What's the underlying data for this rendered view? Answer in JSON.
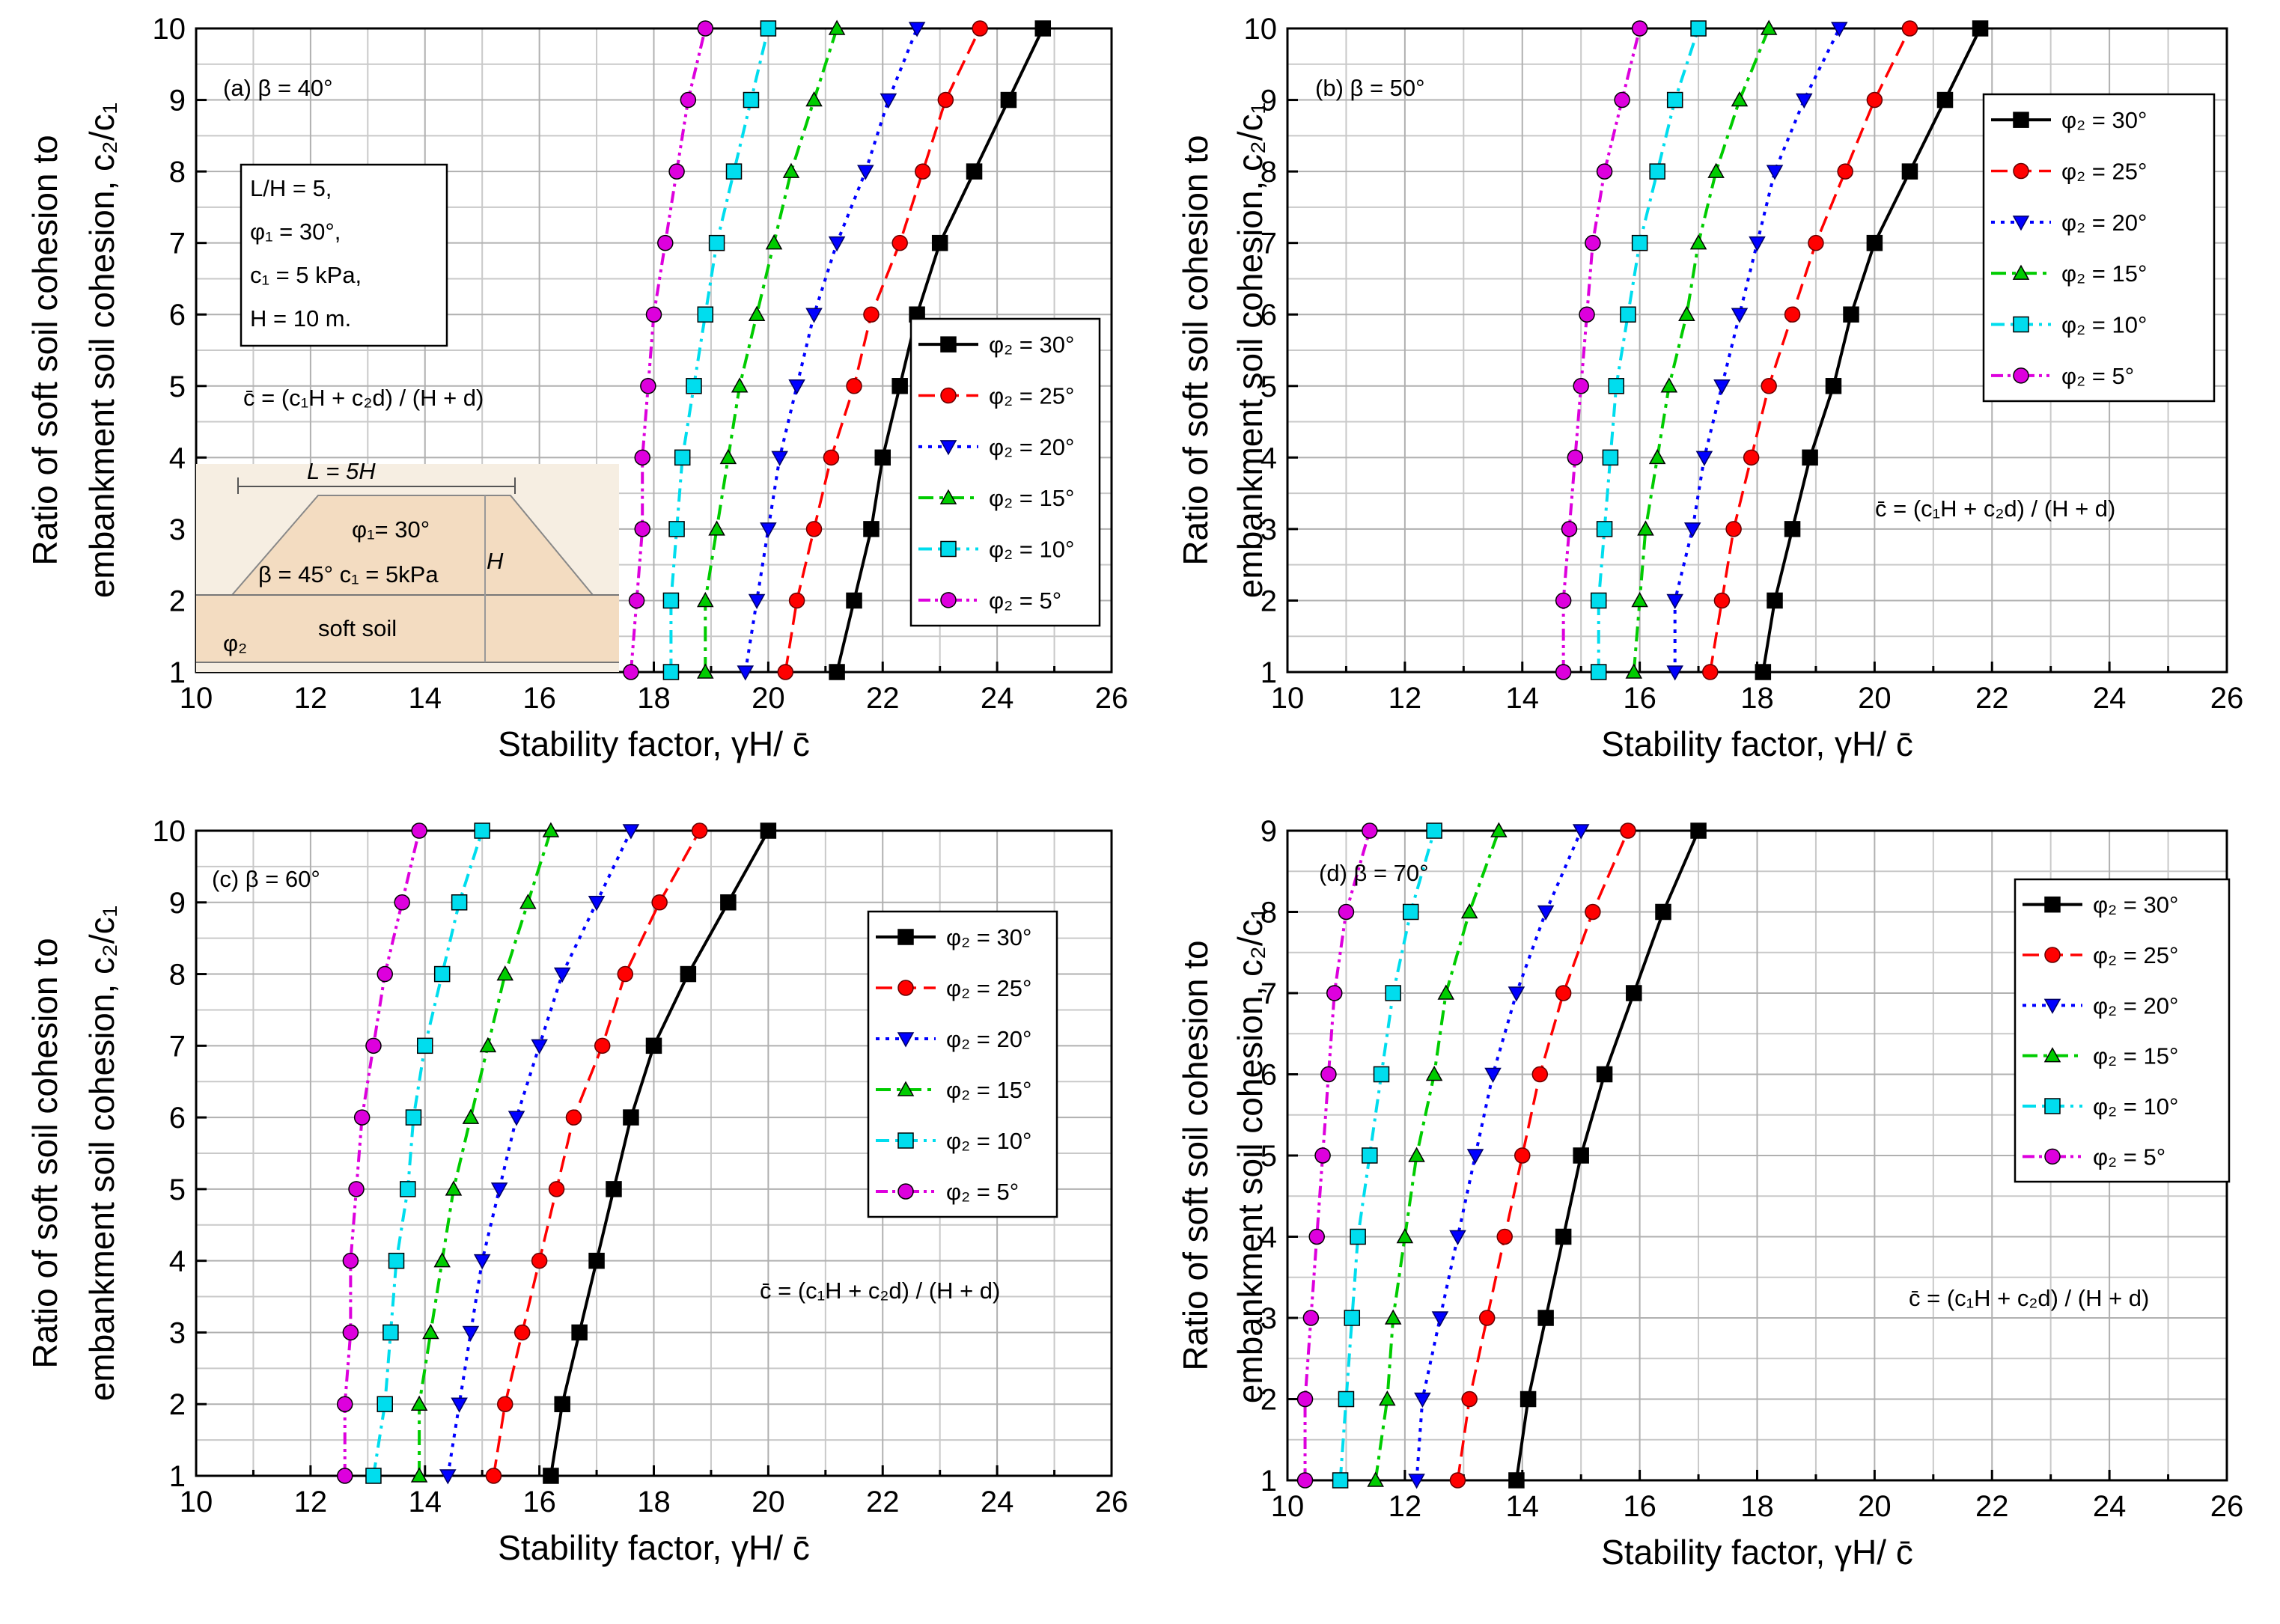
{
  "figure": {
    "xlabel": "Stability factor, γH/ c̄",
    "ylabel_line1": "Ratio of soft soil cohesion to",
    "ylabel_line2": "embankment soil cohesion, c₂/c₁",
    "formula": "c̄ = (c₁H + c₂d) / (H + d)"
  },
  "colors": {
    "p30": "#000000",
    "p25": "#ff0000",
    "p20": "#0000ff",
    "p15": "#00cc00",
    "p10": "#00ddee",
    "p5": "#dd00dd"
  },
  "inset": {
    "params": [
      "L/H = 5,",
      "φ₁ = 30°,",
      "c₁ = 5 kPa,",
      "H = 10 m."
    ],
    "sketch_L": "L = 5H",
    "sketch_phi1": "φ₁= 30°",
    "sketch_beta_c1": "β = 45° c₁ = 5kPa",
    "sketch_H": "H",
    "sketch_soft": "soft soil",
    "sketch_phi2": "φ₂"
  },
  "chart_data": [
    {
      "type": "line",
      "panel": "(a)",
      "title": "(a) β = 40°",
      "xlabel": "Stability factor, γH/ c̄",
      "ylabel": "Ratio of soft soil cohesion to embankment soil cohesion, c₂/c₁",
      "xlim": [
        10,
        26
      ],
      "ylim": [
        1,
        10
      ],
      "xticks": [
        10,
        12,
        14,
        16,
        18,
        20,
        22,
        24,
        26
      ],
      "yticks": [
        1,
        2,
        3,
        4,
        5,
        6,
        7,
        8,
        9,
        10
      ],
      "y": [
        1,
        2,
        3,
        4,
        5,
        6,
        7,
        8,
        9,
        10
      ],
      "legend_position": "center-right",
      "series": [
        {
          "name": "φ₂ = 30°",
          "key": "p30",
          "values": [
            21.2,
            21.5,
            21.8,
            22.0,
            22.3,
            22.6,
            23.0,
            23.6,
            24.2,
            24.8
          ]
        },
        {
          "name": "φ₂ = 25°",
          "key": "p25",
          "values": [
            20.3,
            20.5,
            20.8,
            21.1,
            21.5,
            21.8,
            22.3,
            22.7,
            23.1,
            23.7
          ]
        },
        {
          "name": "φ₂ = 20°",
          "key": "p20",
          "values": [
            19.6,
            19.8,
            20.0,
            20.2,
            20.5,
            20.8,
            21.2,
            21.7,
            22.1,
            22.6
          ]
        },
        {
          "name": "φ₂ = 15°",
          "key": "p15",
          "values": [
            18.9,
            18.9,
            19.1,
            19.3,
            19.5,
            19.8,
            20.1,
            20.4,
            20.8,
            21.2
          ]
        },
        {
          "name": "φ₂ = 10°",
          "key": "p10",
          "values": [
            18.3,
            18.3,
            18.4,
            18.5,
            18.7,
            18.9,
            19.1,
            19.4,
            19.7,
            20.0
          ]
        },
        {
          "name": "φ₂ = 5°",
          "key": "p5",
          "values": [
            17.6,
            17.7,
            17.8,
            17.8,
            17.9,
            18.0,
            18.2,
            18.4,
            18.6,
            18.9
          ]
        }
      ]
    },
    {
      "type": "line",
      "panel": "(b)",
      "title": "(b) β = 50°",
      "xlabel": "Stability factor, γH/ c̄",
      "ylabel": "Ratio of soft soil cohesion to embankment soil cohesion, c₂/c₁",
      "xlim": [
        10,
        26
      ],
      "ylim": [
        1,
        10
      ],
      "xticks": [
        10,
        12,
        14,
        16,
        18,
        20,
        22,
        24,
        26
      ],
      "yticks": [
        1,
        2,
        3,
        4,
        5,
        6,
        7,
        8,
        9,
        10
      ],
      "y": [
        1,
        2,
        3,
        4,
        5,
        6,
        7,
        8,
        9,
        10
      ],
      "legend_position": "top-right",
      "series": [
        {
          "name": "φ₂ = 30°",
          "key": "p30",
          "values": [
            18.1,
            18.3,
            18.6,
            18.9,
            19.3,
            19.6,
            20.0,
            20.6,
            21.2,
            21.8
          ]
        },
        {
          "name": "φ₂ = 25°",
          "key": "p25",
          "values": [
            17.2,
            17.4,
            17.6,
            17.9,
            18.2,
            18.6,
            19.0,
            19.5,
            20.0,
            20.6
          ]
        },
        {
          "name": "φ₂ = 20°",
          "key": "p20",
          "values": [
            16.6,
            16.6,
            16.9,
            17.1,
            17.4,
            17.7,
            18.0,
            18.3,
            18.8,
            19.4
          ]
        },
        {
          "name": "φ₂ = 15°",
          "key": "p15",
          "values": [
            15.9,
            16.0,
            16.1,
            16.3,
            16.5,
            16.8,
            17.0,
            17.3,
            17.7,
            18.2
          ]
        },
        {
          "name": "φ₂ = 10°",
          "key": "p10",
          "values": [
            15.3,
            15.3,
            15.4,
            15.5,
            15.6,
            15.8,
            16.0,
            16.3,
            16.6,
            17.0
          ]
        },
        {
          "name": "φ₂ = 5°",
          "key": "p5",
          "values": [
            14.7,
            14.7,
            14.8,
            14.9,
            15.0,
            15.1,
            15.2,
            15.4,
            15.7,
            16.0
          ]
        }
      ]
    },
    {
      "type": "line",
      "panel": "(c)",
      "title": "(c) β = 60°",
      "xlabel": "Stability factor, γH/ c̄",
      "ylabel": "Ratio of soft soil cohesion to embankment soil cohesion, c₂/c₁",
      "xlim": [
        10,
        26
      ],
      "ylim": [
        1,
        10
      ],
      "xticks": [
        10,
        12,
        14,
        16,
        18,
        20,
        22,
        24,
        26
      ],
      "yticks": [
        1,
        2,
        3,
        4,
        5,
        6,
        7,
        8,
        9,
        10
      ],
      "y": [
        1,
        2,
        3,
        4,
        5,
        6,
        7,
        8,
        9,
        10
      ],
      "legend_position": "top-right",
      "series": [
        {
          "name": "φ₂ = 30°",
          "key": "p30",
          "values": [
            16.2,
            16.4,
            16.7,
            17.0,
            17.3,
            17.6,
            18.0,
            18.6,
            19.3,
            20.0
          ]
        },
        {
          "name": "φ₂ = 25°",
          "key": "p25",
          "values": [
            15.2,
            15.4,
            15.7,
            16.0,
            16.3,
            16.6,
            17.1,
            17.5,
            18.1,
            18.8
          ]
        },
        {
          "name": "φ₂ = 20°",
          "key": "p20",
          "values": [
            14.4,
            14.6,
            14.8,
            15.0,
            15.3,
            15.6,
            16.0,
            16.4,
            17.0,
            17.6
          ]
        },
        {
          "name": "φ₂ = 15°",
          "key": "p15",
          "values": [
            13.9,
            13.9,
            14.1,
            14.3,
            14.5,
            14.8,
            15.1,
            15.4,
            15.8,
            16.2
          ]
        },
        {
          "name": "φ₂ = 10°",
          "key": "p10",
          "values": [
            13.1,
            13.3,
            13.4,
            13.5,
            13.7,
            13.8,
            14.0,
            14.3,
            14.6,
            15.0
          ]
        },
        {
          "name": "φ₂ = 5°",
          "key": "p5",
          "values": [
            12.6,
            12.6,
            12.7,
            12.7,
            12.8,
            12.9,
            13.1,
            13.3,
            13.6,
            13.9
          ]
        }
      ]
    },
    {
      "type": "line",
      "panel": "(d)",
      "title": "(d) β = 70°",
      "xlabel": "Stability factor, γH/ c̄",
      "ylabel": "Ratio of soft soil cohesion to embankment soil cohesion, c₂/c₁",
      "xlim": [
        10,
        26
      ],
      "ylim": [
        1,
        9
      ],
      "xticks": [
        10,
        12,
        14,
        16,
        18,
        20,
        22,
        24,
        26
      ],
      "yticks": [
        1,
        2,
        3,
        4,
        5,
        6,
        7,
        8,
        9
      ],
      "y": [
        1,
        2,
        3,
        4,
        5,
        6,
        7,
        8,
        9
      ],
      "legend_position": "top-right",
      "series": [
        {
          "name": "φ₂ = 30°",
          "key": "p30",
          "values": [
            13.9,
            14.1,
            14.4,
            14.7,
            15.0,
            15.4,
            15.9,
            16.4,
            17.0
          ]
        },
        {
          "name": "φ₂ = 25°",
          "key": "p25",
          "values": [
            12.9,
            13.1,
            13.4,
            13.7,
            14.0,
            14.3,
            14.7,
            15.2,
            15.8
          ]
        },
        {
          "name": "φ₂ = 20°",
          "key": "p20",
          "values": [
            12.2,
            12.3,
            12.6,
            12.9,
            13.2,
            13.5,
            13.9,
            14.4,
            15.0
          ]
        },
        {
          "name": "φ₂ = 15°",
          "key": "p15",
          "values": [
            11.5,
            11.7,
            11.8,
            12.0,
            12.2,
            12.5,
            12.7,
            13.1,
            13.6
          ]
        },
        {
          "name": "φ₂ = 10°",
          "key": "p10",
          "values": [
            10.9,
            11.0,
            11.1,
            11.2,
            11.4,
            11.6,
            11.8,
            12.1,
            12.5
          ]
        },
        {
          "name": "φ₂ = 5°",
          "key": "p5",
          "values": [
            10.3,
            10.3,
            10.4,
            10.5,
            10.6,
            10.7,
            10.8,
            11.0,
            11.4
          ]
        }
      ]
    }
  ]
}
